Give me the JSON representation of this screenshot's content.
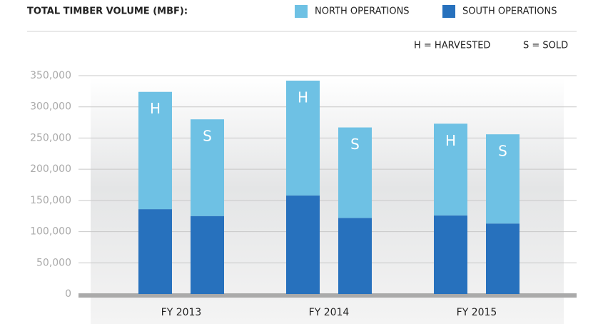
{
  "chart_data": {
    "type": "stacked-bar",
    "title": "TOTAL TIMBER VOLUME (MBF):",
    "key": [
      "H = HARVESTED",
      "S = SOLD"
    ],
    "categories": [
      "FY 2013",
      "FY 2014",
      "FY 2015"
    ],
    "subcategories": [
      "H",
      "S"
    ],
    "series": [
      {
        "name": "SOUTH OPERATIONS",
        "color": "#2771bd",
        "values": [
          [
            136000,
            125000
          ],
          [
            158000,
            122000
          ],
          [
            126000,
            113000
          ]
        ]
      },
      {
        "name": "NORTH OPERATIONS",
        "color": "#6ec1e4",
        "values": [
          [
            188000,
            155000
          ],
          [
            184000,
            145000
          ],
          [
            147000,
            143000
          ]
        ]
      }
    ],
    "legend_order": [
      1,
      0
    ],
    "ylim": [
      0,
      350000
    ],
    "yticks": [
      0,
      {
        "value": 50000,
        "label": "50,000"
      },
      {
        "value": 100000,
        "label": "100,000"
      },
      {
        "value": 150000,
        "label": "150,000"
      },
      {
        "value": 200000,
        "label": "200,000"
      },
      {
        "value": 250000,
        "label": "250,000"
      },
      {
        "value": 300000,
        "label": "300,000"
      },
      {
        "value": 350000,
        "label": "350,000"
      }
    ],
    "grid": true
  }
}
